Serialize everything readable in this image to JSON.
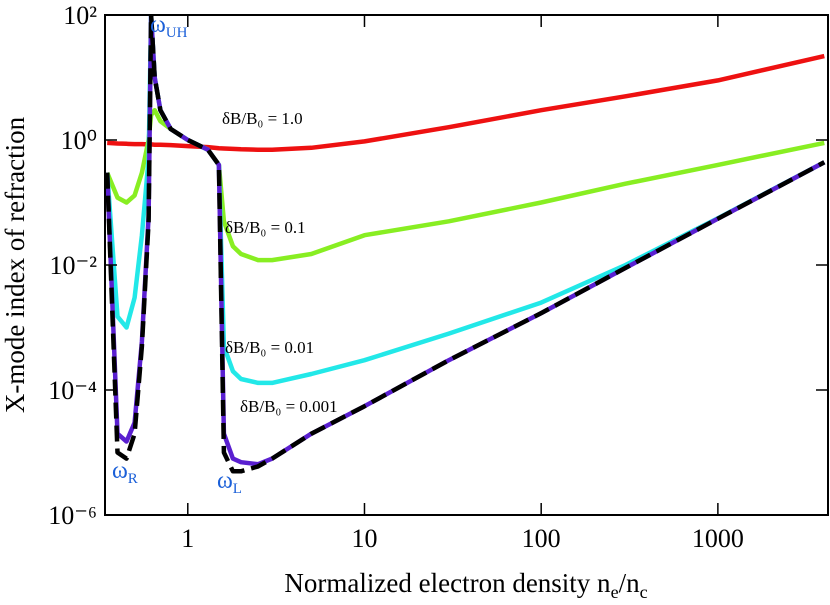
{
  "chart_data": {
    "type": "line",
    "xlabel": [
      {
        "text": "Normalized electron density n"
      },
      {
        "sub": "e"
      },
      {
        "text": "/n"
      },
      {
        "sub": "c"
      }
    ],
    "ylabel": "X-mode index of refraction",
    "xscale": "log",
    "yscale": "log",
    "xlim": [
      0.34,
      4200
    ],
    "ylim": [
      1e-06,
      100
    ],
    "xticks": [
      1,
      10,
      100,
      1000
    ],
    "yticks": [
      {
        "value": 1e-06,
        "label": "10⁻⁶"
      },
      {
        "value": 0.0001,
        "label": "10⁻⁴"
      },
      {
        "value": 0.01,
        "label": "10⁻²"
      },
      {
        "value": 1,
        "label": "10⁰"
      },
      {
        "value": 100,
        "label": "10²"
      }
    ],
    "x": [
      0.35,
      0.4,
      0.45,
      0.5,
      0.55,
      0.6,
      0.62,
      0.65,
      0.7,
      0.8,
      1,
      1.3,
      1.5,
      1.6,
      1.8,
      2,
      2.5,
      3,
      5,
      10,
      30,
      100,
      300,
      1000,
      4000
    ],
    "series": [
      {
        "name": "δB/B₀ = 1.0",
        "color": "#ee1111",
        "values": [
          0.9,
          0.88,
          0.87,
          0.86,
          0.86,
          0.85,
          0.85,
          0.84,
          0.84,
          0.83,
          0.8,
          0.77,
          0.74,
          0.73,
          0.72,
          0.71,
          0.7,
          0.7,
          0.75,
          0.95,
          1.6,
          3,
          5,
          9,
          22
        ]
      },
      {
        "name": "δB/B₀ = 0.1",
        "color": "#88ee22",
        "values": [
          0.3,
          0.12,
          0.1,
          0.13,
          0.3,
          1,
          2.5,
          3,
          2,
          1.5,
          1,
          0.7,
          0.4,
          0.05,
          0.02,
          0.015,
          0.012,
          0.012,
          0.015,
          0.03,
          0.05,
          0.1,
          0.2,
          0.4,
          0.9
        ]
      },
      {
        "name": "δB/B₀ = 0.01",
        "color": "#22e8e8",
        "values": [
          0.3,
          0.0015,
          0.001,
          0.003,
          0.03,
          0.5,
          100,
          10,
          3,
          1.5,
          1,
          0.7,
          0.4,
          0.0005,
          0.0002,
          0.00015,
          0.00013,
          0.00013,
          0.00018,
          0.0003,
          0.0008,
          0.0025,
          0.01,
          0.056,
          0.44
        ]
      },
      {
        "name": "δB/B₀ = 0.001",
        "color": "#5a1fd0",
        "values": [
          0.3,
          2e-05,
          1.5e-05,
          3e-05,
          0.0006,
          0.06,
          100,
          10,
          3,
          1.5,
          1,
          0.7,
          0.4,
          2e-05,
          8e-06,
          7e-06,
          6.5e-06,
          8e-06,
          2e-05,
          5.5e-05,
          0.0003,
          0.0017,
          0.009,
          0.055,
          0.44
        ]
      },
      {
        "color": "#000000",
        "dashed": true,
        "values": [
          0.3,
          1e-05,
          8e-06,
          2e-05,
          0.0005,
          0.05,
          100,
          10,
          3,
          1.5,
          1,
          0.7,
          0.4,
          1e-05,
          5e-06,
          5e-06,
          6e-06,
          8e-06,
          2e-05,
          5.5e-05,
          0.0003,
          0.0017,
          0.009,
          0.055,
          0.44
        ]
      }
    ],
    "annotations": [
      {
        "text": "ω",
        "sub": "UH",
        "color": "#1a5fd8"
      },
      {
        "text": "ω",
        "sub": "R",
        "color": "#1a5fd8"
      },
      {
        "text": "ω",
        "sub": "L",
        "color": "#1a5fd8"
      }
    ]
  }
}
